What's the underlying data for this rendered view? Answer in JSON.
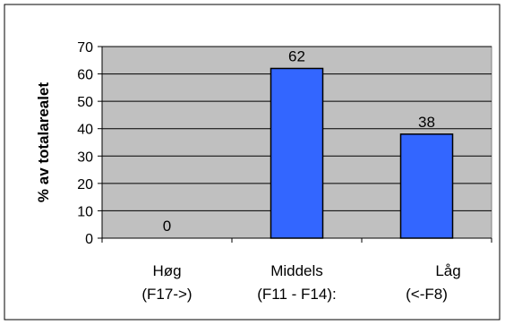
{
  "chart_data": {
    "type": "bar",
    "categories": [
      [
        "Høg",
        "(F17->)"
      ],
      [
        "Middels",
        "(F11 - F14):"
      ],
      [
        "Låg",
        "(<-F8)"
      ]
    ],
    "values": [
      0,
      62,
      38
    ],
    "data_labels": [
      "0",
      "62",
      "38"
    ],
    "ylabel": "% av totalarealet",
    "xlabel": "",
    "ylim": [
      0,
      70
    ],
    "yticks": [
      "0",
      "10",
      "20",
      "30",
      "40",
      "50",
      "60",
      "70"
    ],
    "grid": true,
    "legend": "none",
    "colors": {
      "bar": "#3366ff",
      "plot_bg": "#c0c0c0",
      "page_bg": "#ffffff",
      "border": "#000000"
    }
  }
}
